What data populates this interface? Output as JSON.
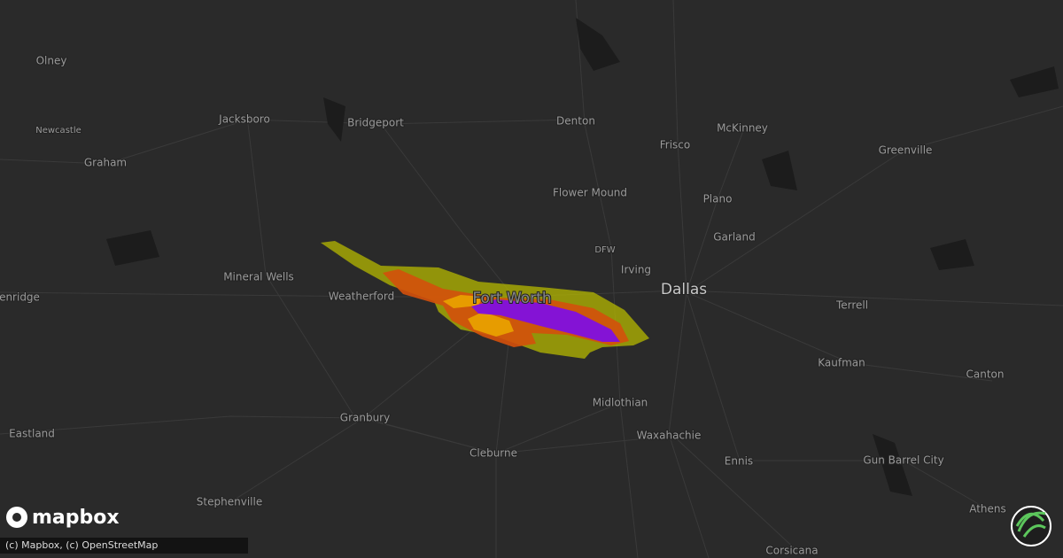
{
  "map": {
    "cities": [
      "Olney",
      "Newcastle",
      "Jacksboro",
      "Bridgeport",
      "Graham",
      "Denton",
      "McKinney",
      "Frisco",
      "Greenville",
      "Flower Mound",
      "Plano",
      "Garland",
      "DFW",
      "Irving",
      "Mineral Wells",
      "Weatherford",
      "enridge",
      "Terrell",
      "Kaufman",
      "Canton",
      "Midlothian",
      "Granbury",
      "Waxahachie",
      "Eastland",
      "Cleburne",
      "Ennis",
      "Gun Barrel City",
      "Stephenville",
      "Athens",
      "Corsicana"
    ],
    "major_cities": [
      "Fort Worth",
      "Dallas"
    ]
  },
  "logo": "mapbox",
  "attribution": "(c) Mapbox, (c) OpenStreetMap"
}
